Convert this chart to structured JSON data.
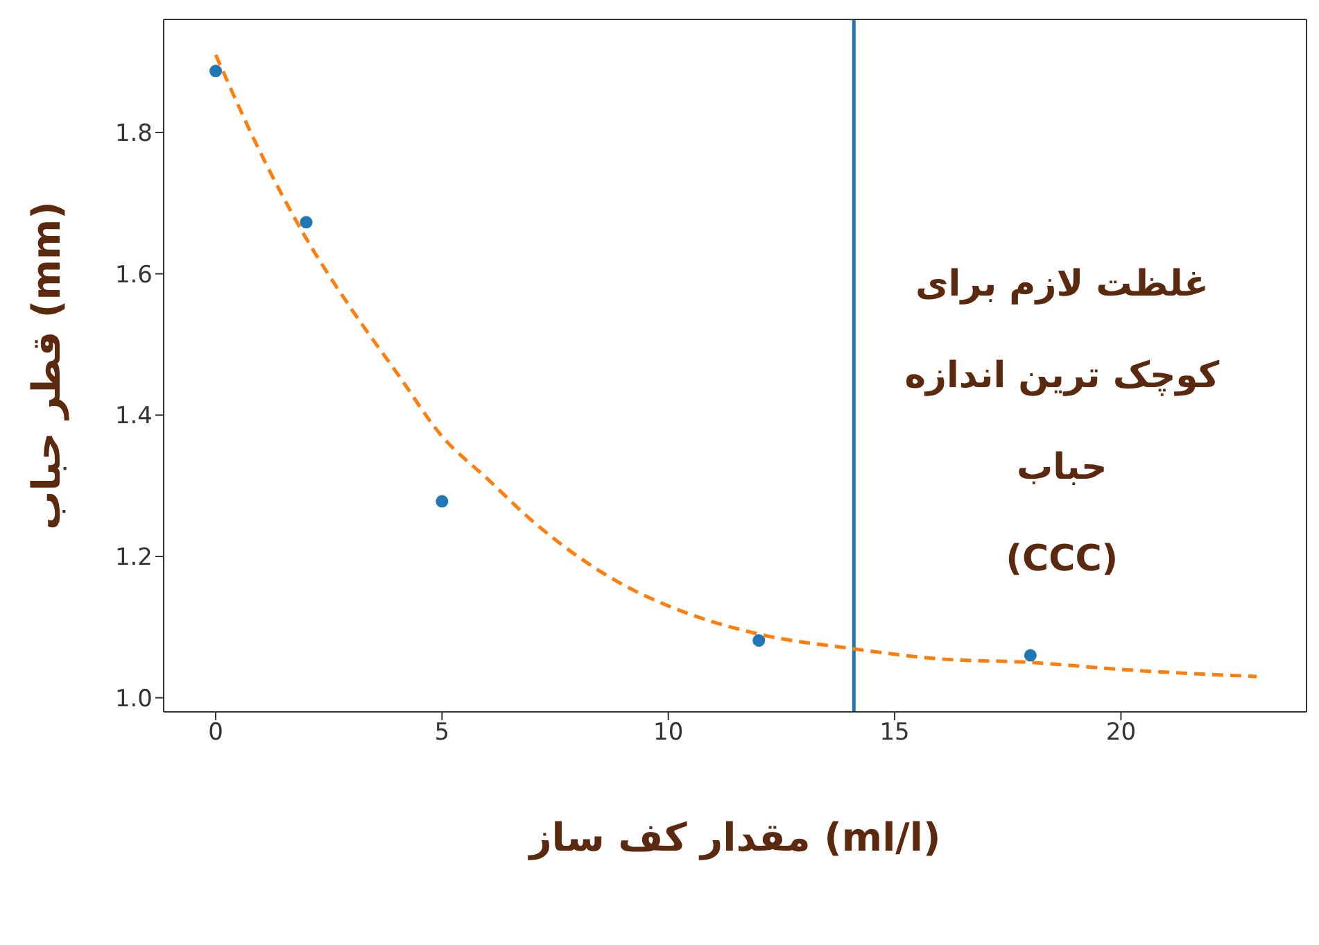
{
  "chart_data": {
    "type": "scatter",
    "xlabel": "مقدار کف ساز (ml/l)",
    "ylabel": "قطر حباب (mm)",
    "xlim": [
      -1.15,
      24.1
    ],
    "ylim": [
      0.98,
      1.96
    ],
    "xticks": [
      0,
      5,
      10,
      15,
      20
    ],
    "yticks": [
      {
        "value": 1.0,
        "label": "1.0"
      },
      {
        "value": 1.2,
        "label": "1.2"
      },
      {
        "value": 1.4,
        "label": "1.4"
      },
      {
        "value": 1.6,
        "label": "1.6"
      },
      {
        "value": 1.8,
        "label": "1.8"
      }
    ],
    "grid": false,
    "legend": false,
    "series": [
      {
        "color": "#1f77b4",
        "marker": "circle",
        "x": [
          0,
          2,
          5,
          12,
          18
        ],
        "values": [
          1.887,
          1.673,
          1.278,
          1.081,
          1.06
        ]
      },
      {
        "type": "line",
        "color": "#ff7f0e",
        "line_style": "dashed",
        "marker": "none",
        "x": [
          0,
          1,
          2,
          3,
          4,
          5,
          6,
          7,
          8,
          9,
          10,
          12,
          14,
          16,
          18,
          20,
          23
        ],
        "values": [
          1.91,
          1.77,
          1.65,
          1.55,
          1.46,
          1.37,
          1.31,
          1.25,
          1.2,
          1.16,
          1.13,
          1.09,
          1.07,
          1.055,
          1.05,
          1.04,
          1.03
        ]
      }
    ],
    "ref_lines": [
      {
        "axis": "x",
        "value": 14.1,
        "color": "#1f77b4",
        "label": "غلظت لازم برای\nکوچک ترین اندازه\nحباب\n(CCC)"
      }
    ]
  }
}
